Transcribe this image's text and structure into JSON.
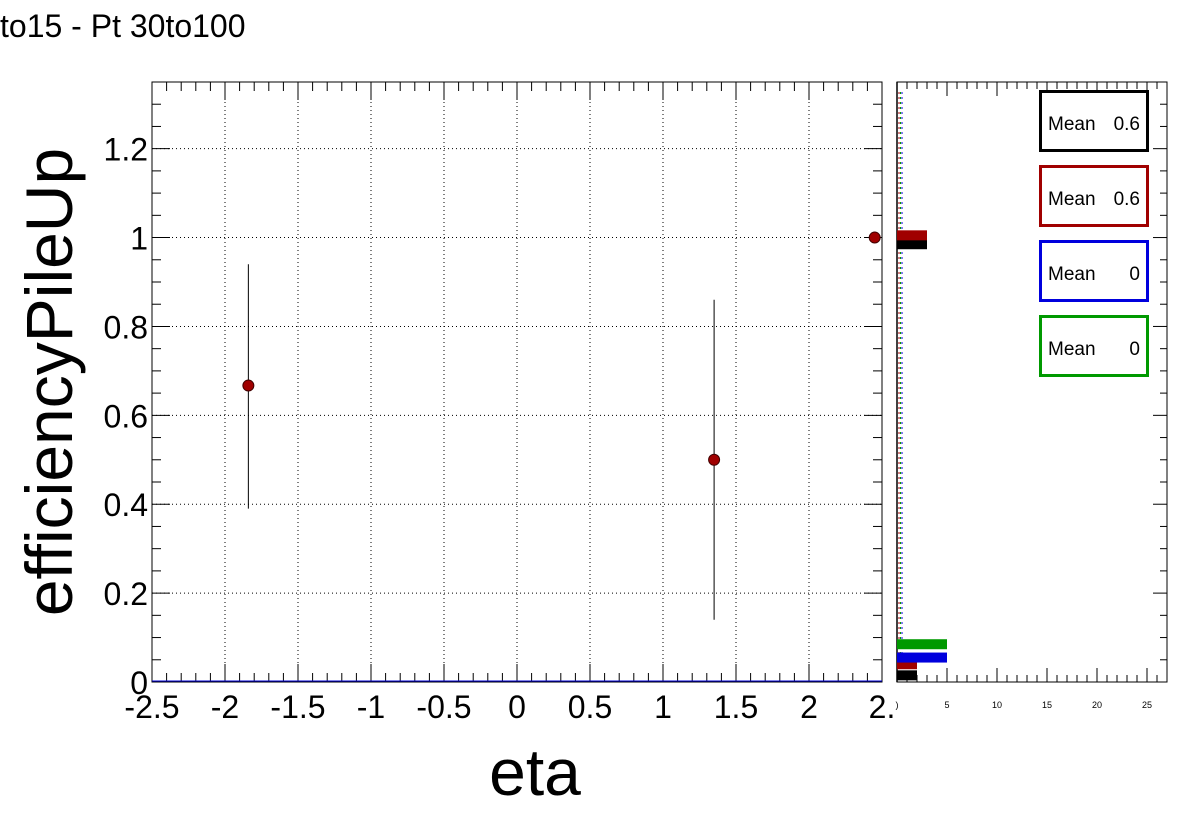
{
  "title": "to15 - Pt 30to100",
  "colors": {
    "point": "#a00000",
    "black": "#000000",
    "red": "#a00000",
    "blue": "#0000dd",
    "green": "#009900",
    "grid": "#000000"
  },
  "chart_data": [
    {
      "type": "scatter",
      "title": "to15 - Pt 30to100",
      "xlabel": "eta",
      "ylabel": "efficiencyPileUp",
      "xlim": [
        -2.5,
        2.5
      ],
      "ylim": [
        0,
        1.35
      ],
      "grid": true,
      "x_ticks": [
        -2.5,
        -2,
        -1.5,
        -1,
        -0.5,
        0,
        0.5,
        1,
        1.5,
        2,
        2.5
      ],
      "x_tick_labels": [
        "-2.5",
        "-2",
        "-1.5",
        "-1",
        "-0.5",
        "0",
        "0.5",
        "1",
        "1.5",
        "2",
        "2."
      ],
      "y_ticks": [
        0,
        0.2,
        0.4,
        0.6,
        0.8,
        1,
        1.2
      ],
      "y_tick_labels": [
        "0",
        "0.2",
        "0.4",
        "0.6",
        "0.8",
        "1",
        "1.2"
      ],
      "points": [
        {
          "x": -1.84,
          "y": 0.667,
          "y_low": 0.39,
          "y_high": 0.94
        },
        {
          "x": 1.35,
          "y": 0.5,
          "y_low": 0.14,
          "y_high": 0.86
        },
        {
          "x": 2.45,
          "y": 1.0,
          "y_low": 1.0,
          "y_high": 1.0
        }
      ]
    },
    {
      "type": "bar",
      "xlim": [
        0,
        27
      ],
      "ylim": [
        0,
        1.35
      ],
      "x_ticks": [
        0,
        5,
        10,
        15,
        20,
        25
      ],
      "x_tick_labels": [
        ")",
        "5",
        "10",
        "15",
        "20",
        "25"
      ],
      "series": [
        {
          "color": "#000000",
          "bars": [
            {
              "x0": 0,
              "x1": 3,
              "y": 0.985
            },
            {
              "x0": 0,
              "x1": 2,
              "y": 0.015
            }
          ]
        },
        {
          "color": "#a00000",
          "bars": [
            {
              "x0": 0,
              "x1": 3,
              "y": 1.005
            },
            {
              "x0": 0,
              "x1": 2,
              "y": 0.04
            }
          ]
        },
        {
          "color": "#0000dd",
          "bars": [
            {
              "x0": 0,
              "x1": 5,
              "y": 0.055
            }
          ]
        },
        {
          "color": "#009900",
          "bars": [
            {
              "x0": 0,
              "x1": 5,
              "y": 0.085
            }
          ]
        }
      ],
      "stats": [
        {
          "label": "Mean",
          "value": "0.6",
          "color": "#000000"
        },
        {
          "label": "Mean",
          "value": "0.6",
          "color": "#a00000"
        },
        {
          "label": "Mean",
          "value": "0",
          "color": "#0000dd"
        },
        {
          "label": "Mean",
          "value": "0",
          "color": "#009900"
        }
      ]
    }
  ]
}
